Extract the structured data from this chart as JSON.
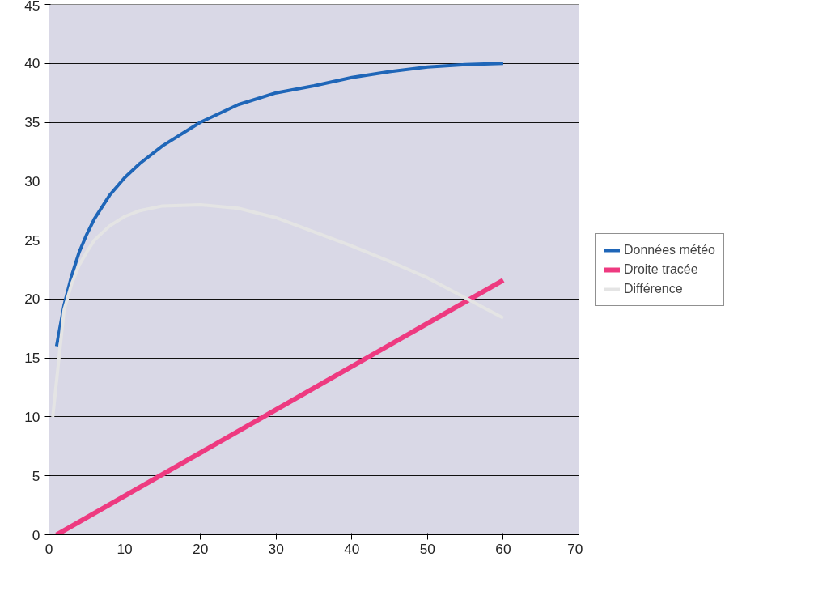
{
  "chart_data": {
    "type": "line",
    "legend": "right",
    "grid": "y",
    "line_style": "solid",
    "marker": "none",
    "xlim": [
      0,
      70
    ],
    "xticks": [
      0,
      10,
      20,
      30,
      40,
      50,
      60,
      70
    ],
    "ylim": [
      0,
      45
    ],
    "yticks": [
      0,
      5,
      10,
      15,
      20,
      25,
      30,
      35,
      40,
      45
    ],
    "series": [
      {
        "name": "Données météo",
        "color": "#1f66b8",
        "x": [
          1,
          2,
          3,
          4,
          5,
          6,
          8,
          10,
          12,
          15,
          20,
          25,
          30,
          35,
          40,
          45,
          50,
          55,
          60
        ],
        "values": [
          16,
          19.5,
          22,
          24,
          25.5,
          26.8,
          28.8,
          30.3,
          31.5,
          33,
          35,
          36.5,
          37.5,
          38.1,
          38.8,
          39.3,
          39.7,
          39.9,
          40
        ]
      },
      {
        "name": "Droite tracée",
        "color": "#ee3a80",
        "x": [
          1,
          60
        ],
        "values": [
          0,
          21.6
        ]
      },
      {
        "name": "Différence",
        "color": "#e4e4e4",
        "x": [
          0.5,
          2,
          3,
          4,
          5,
          6,
          8,
          10,
          12,
          15,
          20,
          25,
          30,
          35,
          40,
          45,
          50,
          55,
          60
        ],
        "values": [
          10,
          19.1,
          21.3,
          22.9,
          24,
          25,
          26.2,
          27,
          27.5,
          27.9,
          28,
          27.7,
          26.9,
          25.7,
          24.5,
          23.2,
          21.8,
          20.1,
          18.4
        ]
      }
    ]
  }
}
